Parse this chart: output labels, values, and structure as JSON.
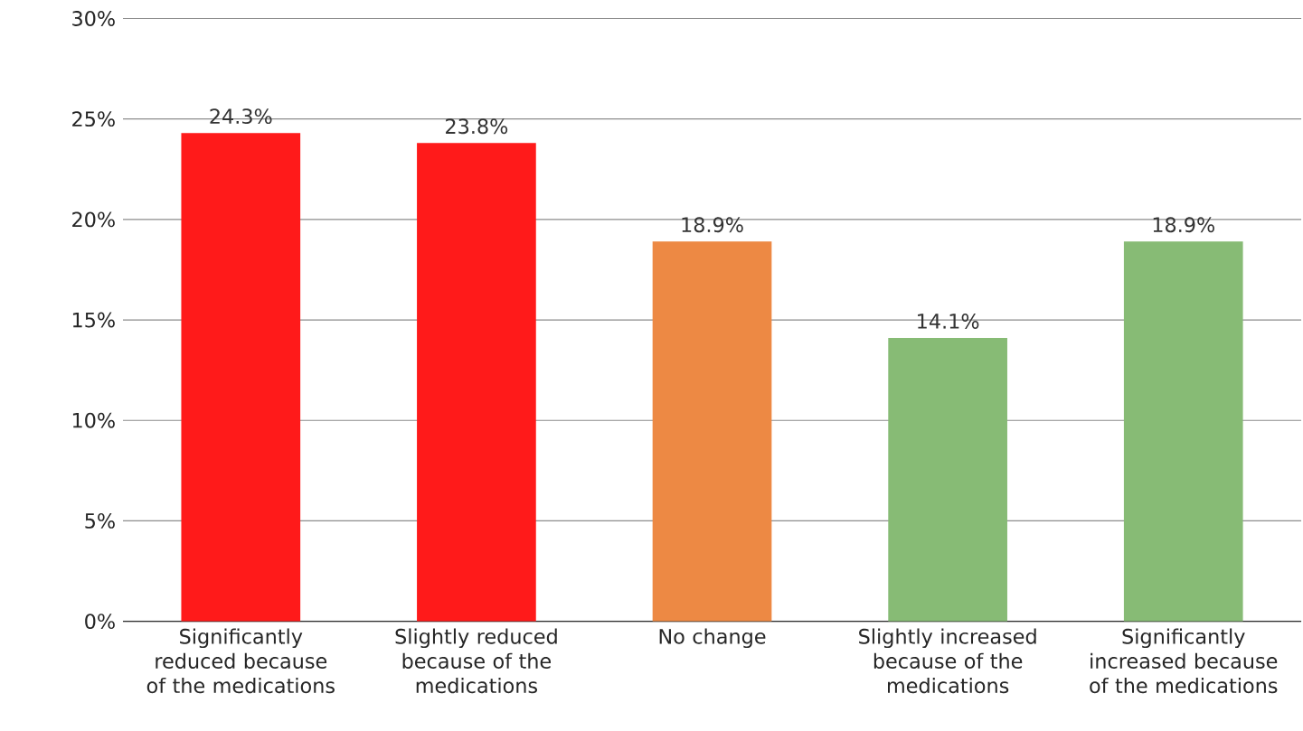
{
  "chart_data": {
    "type": "bar",
    "categories": [
      "Significantly reduced because of the medications",
      "Slightly reduced because of the medications",
      "No change",
      "Slightly increased because of the medications",
      "Significantly increased because of the medications"
    ],
    "values": [
      24.3,
      23.8,
      18.9,
      14.1,
      18.9
    ],
    "value_labels": [
      "24.3%",
      "23.8%",
      "18.9%",
      "14.1%",
      "18.9%"
    ],
    "colors": [
      "#ff1a1a",
      "#ff1a1a",
      "#ed8944",
      "#87bb75",
      "#87bb75"
    ],
    "ylim": [
      0,
      30
    ],
    "yticks": [
      {
        "value": 0,
        "label": "0%"
      },
      {
        "value": 5,
        "label": "5%"
      },
      {
        "value": 10,
        "label": "10%"
      },
      {
        "value": 15,
        "label": "15%"
      },
      {
        "value": 20,
        "label": "20%"
      },
      {
        "value": 25,
        "label": "25%"
      },
      {
        "value": 30,
        "label": "30%"
      }
    ],
    "grid": "y"
  }
}
